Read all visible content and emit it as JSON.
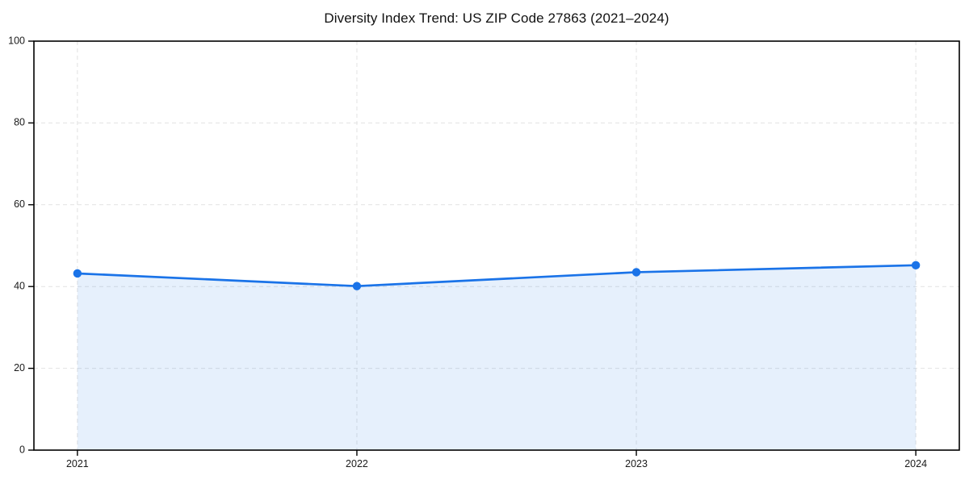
{
  "chart_data": {
    "type": "area",
    "title": "Diversity Index Trend: US ZIP Code 27863 (2021–2024)",
    "categories": [
      "2021",
      "2022",
      "2023",
      "2024"
    ],
    "x": [
      2021,
      2022,
      2023,
      2024
    ],
    "series": [
      {
        "name": "Diversity Index",
        "values": [
          43.2,
          40.1,
          43.5,
          45.2
        ]
      }
    ],
    "xlabel": "",
    "ylabel": "",
    "ylim": [
      0,
      100
    ],
    "yticks": [
      0,
      20,
      40,
      60,
      80,
      100
    ],
    "grid": true,
    "grid_style": "dashed",
    "legend": "none",
    "marker": "circle"
  },
  "colors": {
    "line": "#1a73e8",
    "area_fill": "#1a73e8",
    "area_opacity": "0.11",
    "grid": "#e2e2e2",
    "axis": "#000000",
    "tick_label": "#1a1a1a",
    "background": "#ffffff"
  }
}
